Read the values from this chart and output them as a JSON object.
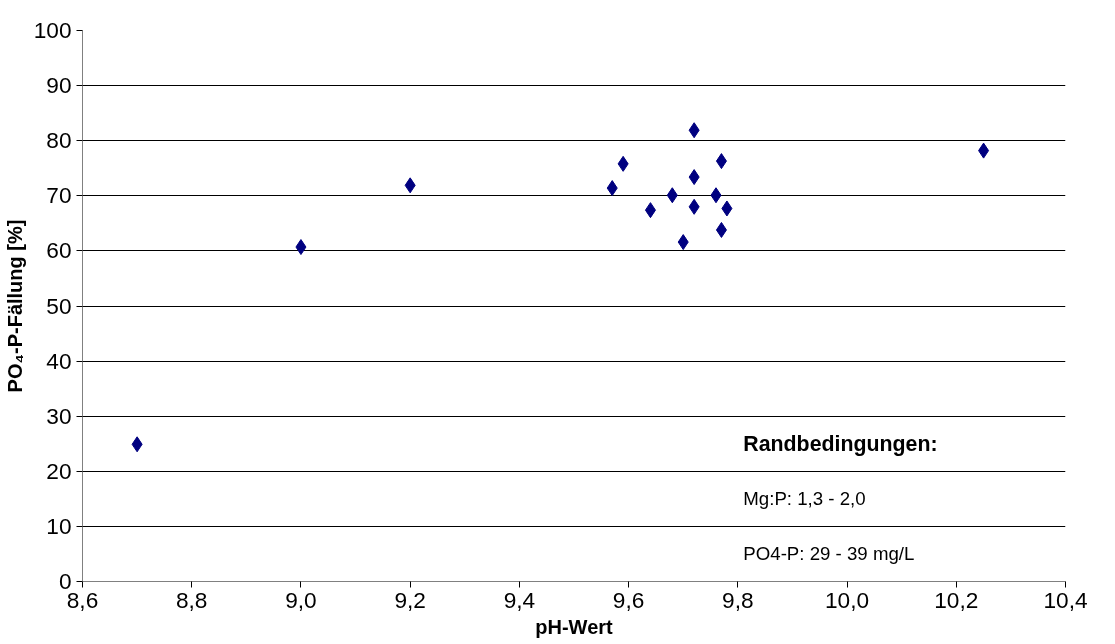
{
  "chart_data": {
    "type": "scatter",
    "xlabel": "pH-Wert",
    "ylabel": "PO₄-P-Fällung [%]",
    "x": [
      8.7,
      9.0,
      9.2,
      9.72,
      9.59,
      9.57,
      9.64,
      9.68,
      9.72,
      9.72,
      9.7,
      9.77,
      9.76,
      9.78,
      9.77,
      10.25
    ],
    "series": [
      {
        "color": "#000080",
        "values": [
          24.9,
          60.7,
          71.9,
          81.9,
          75.8,
          71.4,
          67.4,
          70.1,
          73.4,
          68.0,
          61.6,
          76.3,
          70.1,
          67.7,
          63.8,
          78.2
        ]
      }
    ],
    "xlim": [
      8.6,
      10.4
    ],
    "ylim": [
      0,
      100
    ],
    "xticks": [
      {
        "value": 8.6,
        "label": "8,6"
      },
      {
        "value": 8.8,
        "label": "8,8"
      },
      {
        "value": 9.0,
        "label": "9,0"
      },
      {
        "value": 9.2,
        "label": "9,2"
      },
      {
        "value": 9.4,
        "label": "9,4"
      },
      {
        "value": 9.6,
        "label": "9,6"
      },
      {
        "value": 9.8,
        "label": "9,8"
      },
      {
        "value": 10.0,
        "label": "10,0"
      },
      {
        "value": 10.2,
        "label": "10,2"
      },
      {
        "value": 10.4,
        "label": "10,4"
      }
    ],
    "yticks": [
      0,
      10,
      20,
      30,
      40,
      50,
      60,
      70,
      80,
      90,
      100
    ],
    "grid": "y",
    "marker": "diamond",
    "annotations": [
      "Randbedingungen:",
      "Mg:P: 1,3 - 2,0",
      "PO4-P: 29 - 39 mg/L"
    ]
  }
}
